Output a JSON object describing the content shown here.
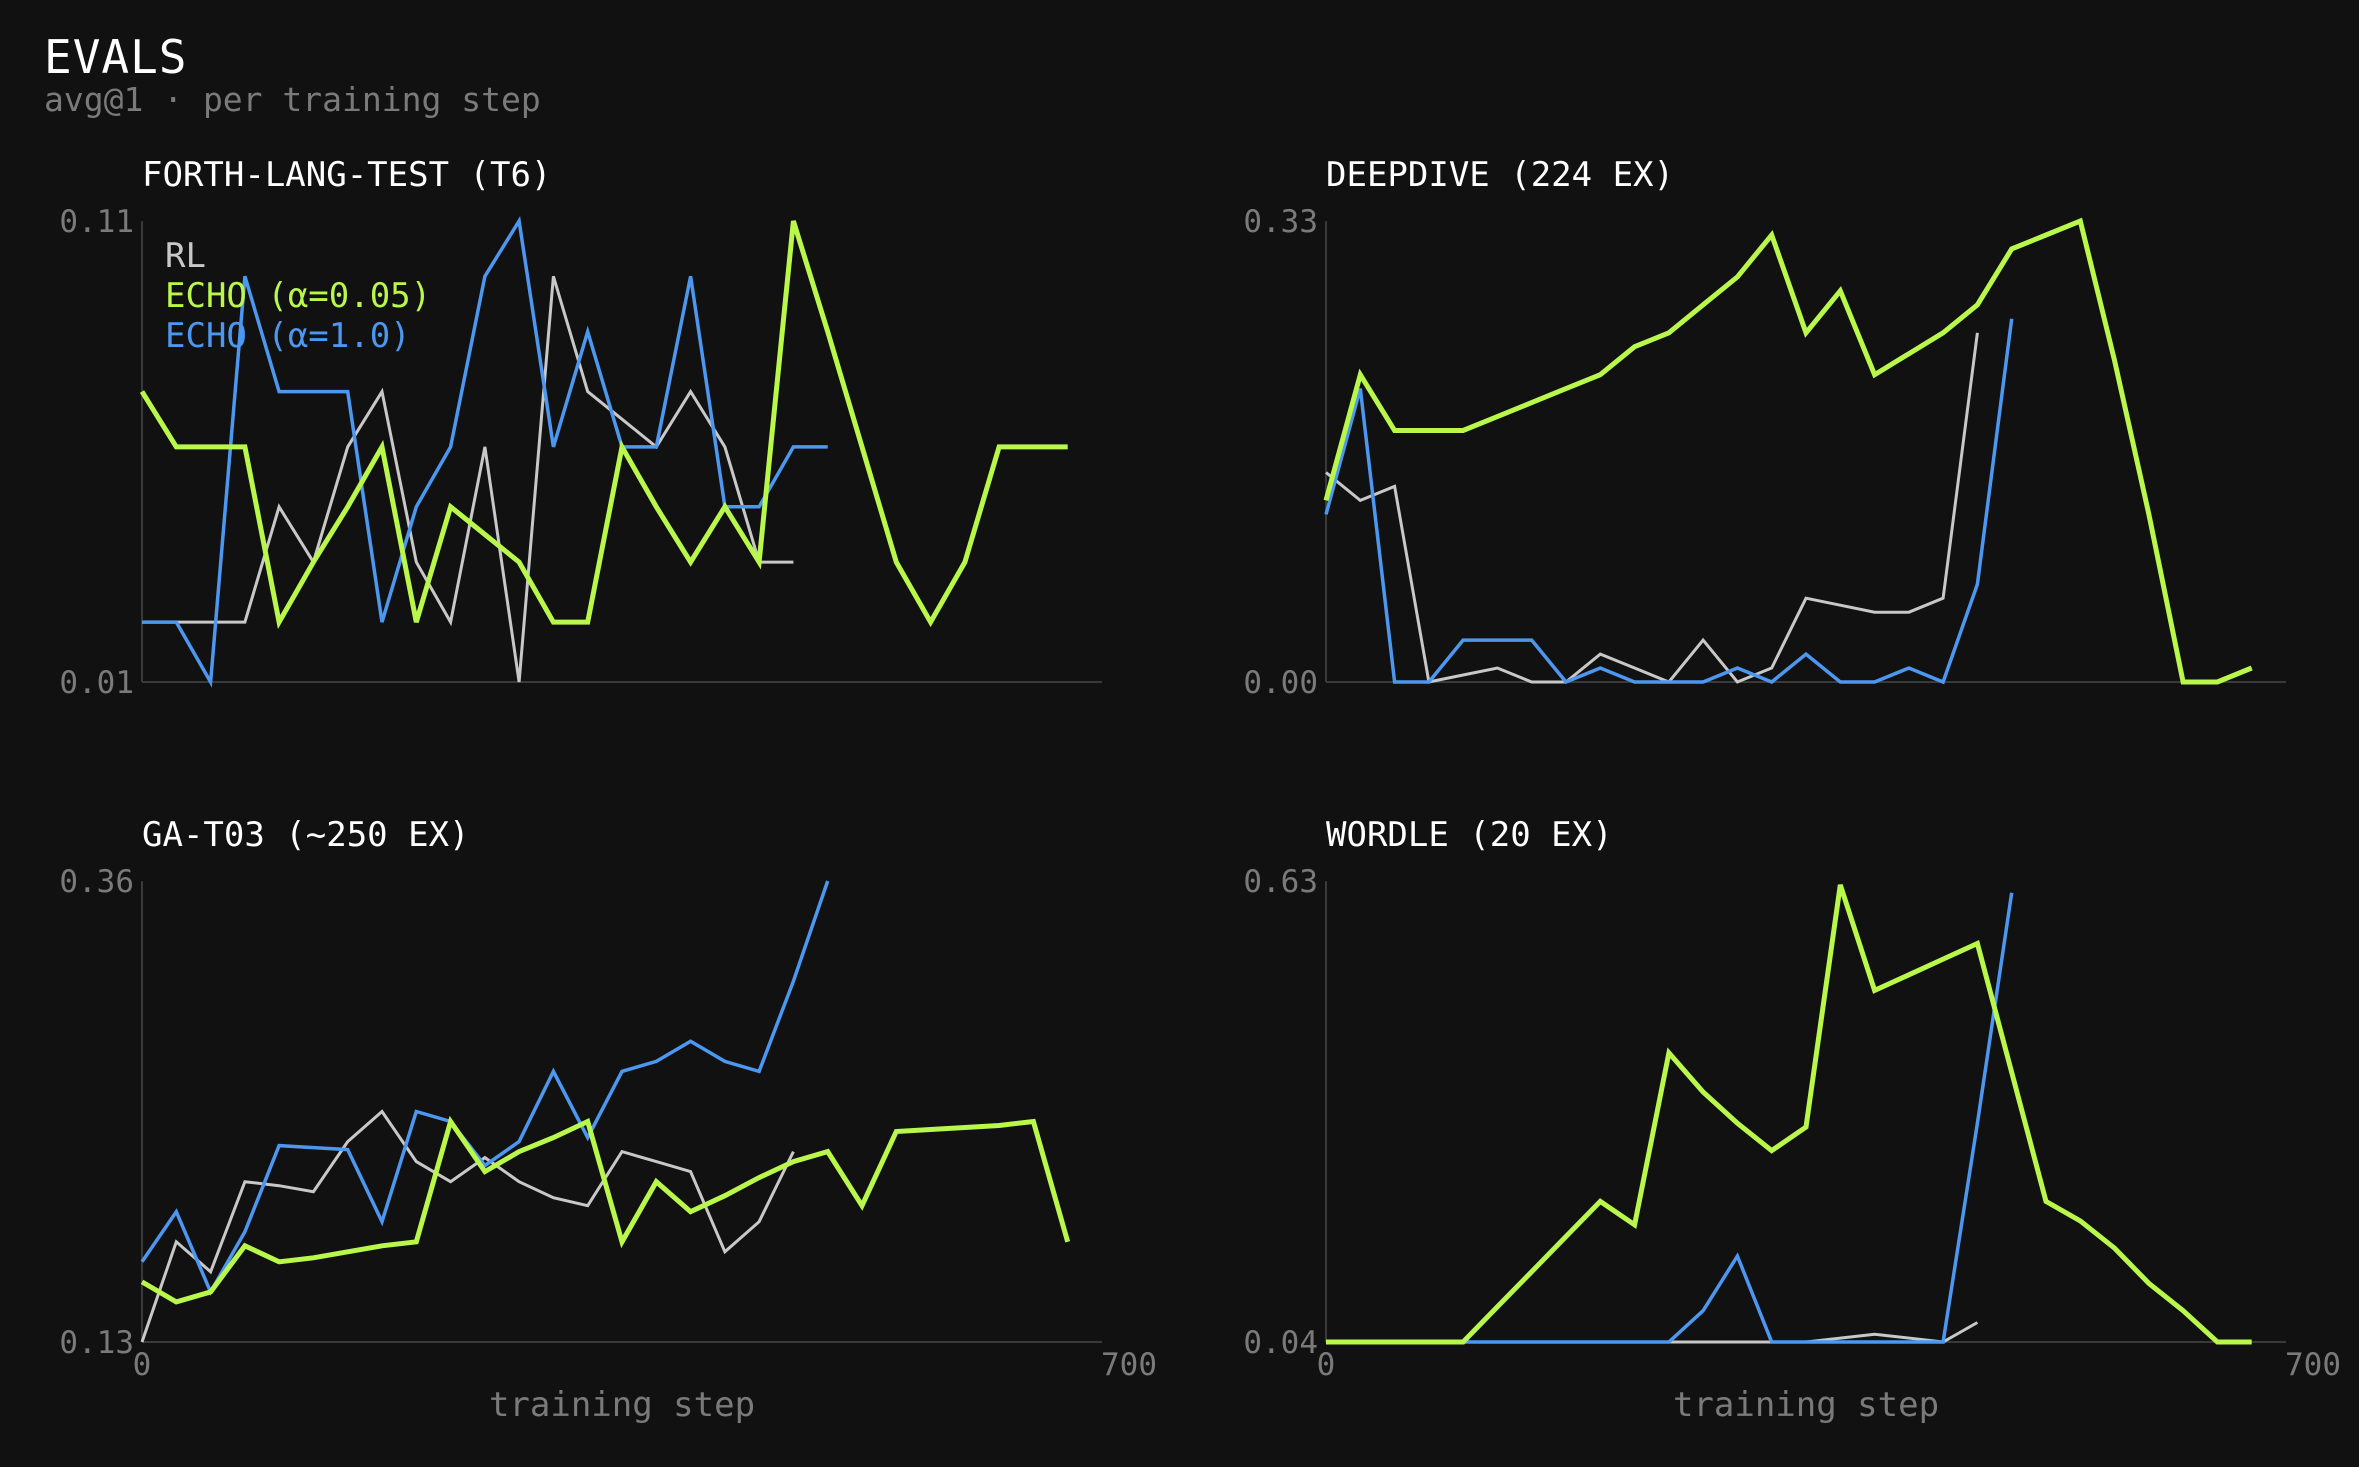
{
  "header": {
    "title": "EVALS",
    "subtitle": "avg@1 · per training step"
  },
  "colors": {
    "background": "#111111",
    "rl": "#c8c8c8",
    "echo_005": "#b9f74a",
    "echo_10": "#4c97f0",
    "axis": "#3a3a3a",
    "muted_text": "#7a7a7a"
  },
  "chart_data": [
    {
      "type": "line",
      "title": "FORTH-LANG-TEST (T6)",
      "xlabel": "",
      "ylabel": "",
      "xlim": [
        0,
        700
      ],
      "ylim": [
        0.01,
        0.11
      ],
      "ytick_labels": [
        "0.11",
        "0.01"
      ],
      "xtick_labels": [],
      "legend": "top-left",
      "series": [
        {
          "name": "RL",
          "color_key": "rl",
          "x": [
            0,
            25,
            50,
            75,
            100,
            125,
            150,
            175,
            200,
            225,
            250,
            275,
            300,
            325,
            350,
            375,
            400,
            425,
            450,
            475
          ],
          "y": [
            0.023,
            0.023,
            0.023,
            0.023,
            0.048,
            0.036,
            0.061,
            0.073,
            0.036,
            0.023,
            0.061,
            0.01,
            0.098,
            0.073,
            0.067,
            0.061,
            0.073,
            0.061,
            0.036,
            0.036
          ]
        },
        {
          "name": "ECHO (α=0.05)",
          "color_key": "echo_005",
          "x": [
            0,
            25,
            50,
            75,
            100,
            125,
            150,
            175,
            200,
            225,
            250,
            275,
            300,
            325,
            350,
            375,
            400,
            425,
            450,
            475,
            500,
            525,
            550,
            575,
            600,
            625,
            650,
            675
          ],
          "y": [
            0.073,
            0.061,
            0.061,
            0.061,
            0.023,
            0.036,
            0.048,
            0.061,
            0.023,
            0.048,
            0.042,
            0.036,
            0.023,
            0.023,
            0.061,
            0.048,
            0.036,
            0.048,
            0.036,
            0.11,
            0.086,
            0.061,
            0.036,
            0.023,
            0.036,
            0.061,
            0.061,
            0.061
          ]
        },
        {
          "name": "ECHO (α=1.0)",
          "color_key": "echo_10",
          "x": [
            0,
            25,
            50,
            75,
            100,
            125,
            150,
            175,
            200,
            225,
            250,
            275,
            300,
            325,
            350,
            375,
            400,
            425,
            450,
            475,
            500
          ],
          "y": [
            0.023,
            0.023,
            0.01,
            0.098,
            0.073,
            0.073,
            0.073,
            0.023,
            0.048,
            0.061,
            0.098,
            0.11,
            0.061,
            0.086,
            0.061,
            0.061,
            0.098,
            0.048,
            0.048,
            0.061,
            0.061
          ]
        }
      ]
    },
    {
      "type": "line",
      "title": "DEEPDIVE (224 EX)",
      "xlabel": "",
      "ylabel": "",
      "xlim": [
        0,
        700
      ],
      "ylim": [
        0.0,
        0.33
      ],
      "ytick_labels": [
        "0.33",
        "0.00"
      ],
      "xtick_labels": [],
      "series": [
        {
          "name": "RL",
          "color_key": "rl",
          "x": [
            0,
            25,
            50,
            75,
            100,
            125,
            150,
            175,
            200,
            225,
            250,
            275,
            300,
            325,
            350,
            375,
            400,
            425,
            450,
            475
          ],
          "y": [
            0.15,
            0.13,
            0.14,
            0.0,
            0.005,
            0.01,
            0.0,
            0.0,
            0.02,
            0.01,
            0.0,
            0.03,
            0.0,
            0.01,
            0.06,
            0.055,
            0.05,
            0.05,
            0.06,
            0.25
          ]
        },
        {
          "name": "ECHO (α=0.05)",
          "color_key": "echo_005",
          "x": [
            0,
            25,
            50,
            75,
            100,
            125,
            150,
            175,
            200,
            225,
            250,
            275,
            300,
            325,
            350,
            375,
            400,
            425,
            450,
            475,
            500,
            525,
            550,
            575,
            600,
            625,
            650,
            675
          ],
          "y": [
            0.13,
            0.22,
            0.18,
            0.18,
            0.18,
            0.19,
            0.2,
            0.21,
            0.22,
            0.24,
            0.25,
            0.27,
            0.29,
            0.32,
            0.25,
            0.28,
            0.22,
            0.235,
            0.25,
            0.27,
            0.31,
            0.32,
            0.33,
            0.23,
            0.12,
            0.0,
            0.0,
            0.01
          ]
        },
        {
          "name": "ECHO (α=1.0)",
          "color_key": "echo_10",
          "x": [
            0,
            25,
            50,
            75,
            100,
            125,
            150,
            175,
            200,
            225,
            250,
            275,
            300,
            325,
            350,
            375,
            400,
            425,
            450,
            475,
            500
          ],
          "y": [
            0.12,
            0.21,
            0.0,
            0.0,
            0.03,
            0.03,
            0.03,
            0.0,
            0.01,
            0.0,
            0.0,
            0.0,
            0.01,
            0.0,
            0.02,
            0.0,
            0.0,
            0.01,
            0.0,
            0.07,
            0.26
          ]
        }
      ]
    },
    {
      "type": "line",
      "title": "GA-T03 (~250 EX)",
      "xlabel": "training step",
      "ylabel": "",
      "xlim": [
        0,
        700
      ],
      "ylim": [
        0.13,
        0.36
      ],
      "ytick_labels": [
        "0.36",
        "0.13"
      ],
      "xtick_labels": [
        "0",
        "700"
      ],
      "series": [
        {
          "name": "RL",
          "color_key": "rl",
          "x": [
            0,
            25,
            50,
            75,
            100,
            125,
            150,
            175,
            200,
            225,
            250,
            275,
            300,
            325,
            350,
            375,
            400,
            425,
            450,
            475
          ],
          "y": [
            0.13,
            0.18,
            0.165,
            0.21,
            0.208,
            0.205,
            0.23,
            0.245,
            0.22,
            0.21,
            0.222,
            0.21,
            0.202,
            0.198,
            0.225,
            0.22,
            0.215,
            0.175,
            0.19,
            0.225
          ]
        },
        {
          "name": "ECHO (α=0.05)",
          "color_key": "echo_005",
          "x": [
            0,
            25,
            50,
            75,
            100,
            125,
            150,
            175,
            200,
            225,
            250,
            275,
            300,
            325,
            350,
            375,
            400,
            425,
            450,
            475,
            500,
            525,
            550,
            575,
            600,
            625,
            650,
            675
          ],
          "y": [
            0.16,
            0.15,
            0.155,
            0.178,
            0.17,
            0.172,
            0.175,
            0.178,
            0.18,
            0.24,
            0.215,
            0.225,
            0.232,
            0.24,
            0.18,
            0.21,
            0.195,
            0.203,
            0.212,
            0.22,
            0.225,
            0.198,
            0.235,
            0.236,
            0.237,
            0.238,
            0.24,
            0.18
          ]
        },
        {
          "name": "ECHO (α=1.0)",
          "color_key": "echo_10",
          "x": [
            0,
            25,
            50,
            75,
            100,
            125,
            150,
            175,
            200,
            225,
            250,
            275,
            300,
            325,
            350,
            375,
            400,
            425,
            450,
            475,
            500
          ],
          "y": [
            0.17,
            0.195,
            0.155,
            0.185,
            0.228,
            0.227,
            0.226,
            0.19,
            0.245,
            0.24,
            0.218,
            0.23,
            0.265,
            0.232,
            0.265,
            0.27,
            0.28,
            0.27,
            0.265,
            0.31,
            0.36
          ]
        }
      ]
    },
    {
      "type": "line",
      "title": "WORDLE (20 EX)",
      "xlabel": "training step",
      "ylabel": "",
      "xlim": [
        0,
        700
      ],
      "ylim": [
        0.04,
        0.63
      ],
      "ytick_labels": [
        "0.63",
        "0.04"
      ],
      "xtick_labels": [
        "0",
        "700"
      ],
      "series": [
        {
          "name": "RL",
          "color_key": "rl",
          "x": [
            0,
            50,
            100,
            150,
            200,
            250,
            300,
            350,
            400,
            450,
            475
          ],
          "y": [
            0.04,
            0.04,
            0.04,
            0.04,
            0.04,
            0.04,
            0.04,
            0.04,
            0.05,
            0.04,
            0.065
          ]
        },
        {
          "name": "ECHO (α=0.05)",
          "color_key": "echo_005",
          "x": [
            0,
            25,
            50,
            75,
            100,
            125,
            150,
            175,
            200,
            225,
            250,
            275,
            300,
            325,
            350,
            375,
            400,
            425,
            450,
            475,
            500,
            525,
            550,
            575,
            600,
            625,
            650,
            675
          ],
          "y": [
            0.04,
            0.04,
            0.04,
            0.04,
            0.04,
            0.085,
            0.13,
            0.175,
            0.22,
            0.19,
            0.41,
            0.36,
            0.32,
            0.285,
            0.315,
            0.625,
            0.49,
            0.51,
            0.53,
            0.55,
            0.385,
            0.22,
            0.195,
            0.16,
            0.115,
            0.08,
            0.04,
            0.04
          ]
        },
        {
          "name": "ECHO (α=1.0)",
          "color_key": "echo_10",
          "x": [
            0,
            50,
            100,
            150,
            200,
            250,
            275,
            300,
            325,
            350,
            375,
            400,
            425,
            450,
            475,
            500
          ],
          "y": [
            0.04,
            0.04,
            0.04,
            0.04,
            0.04,
            0.04,
            0.08,
            0.15,
            0.04,
            0.04,
            0.04,
            0.04,
            0.04,
            0.04,
            0.32,
            0.615
          ]
        }
      ]
    }
  ]
}
